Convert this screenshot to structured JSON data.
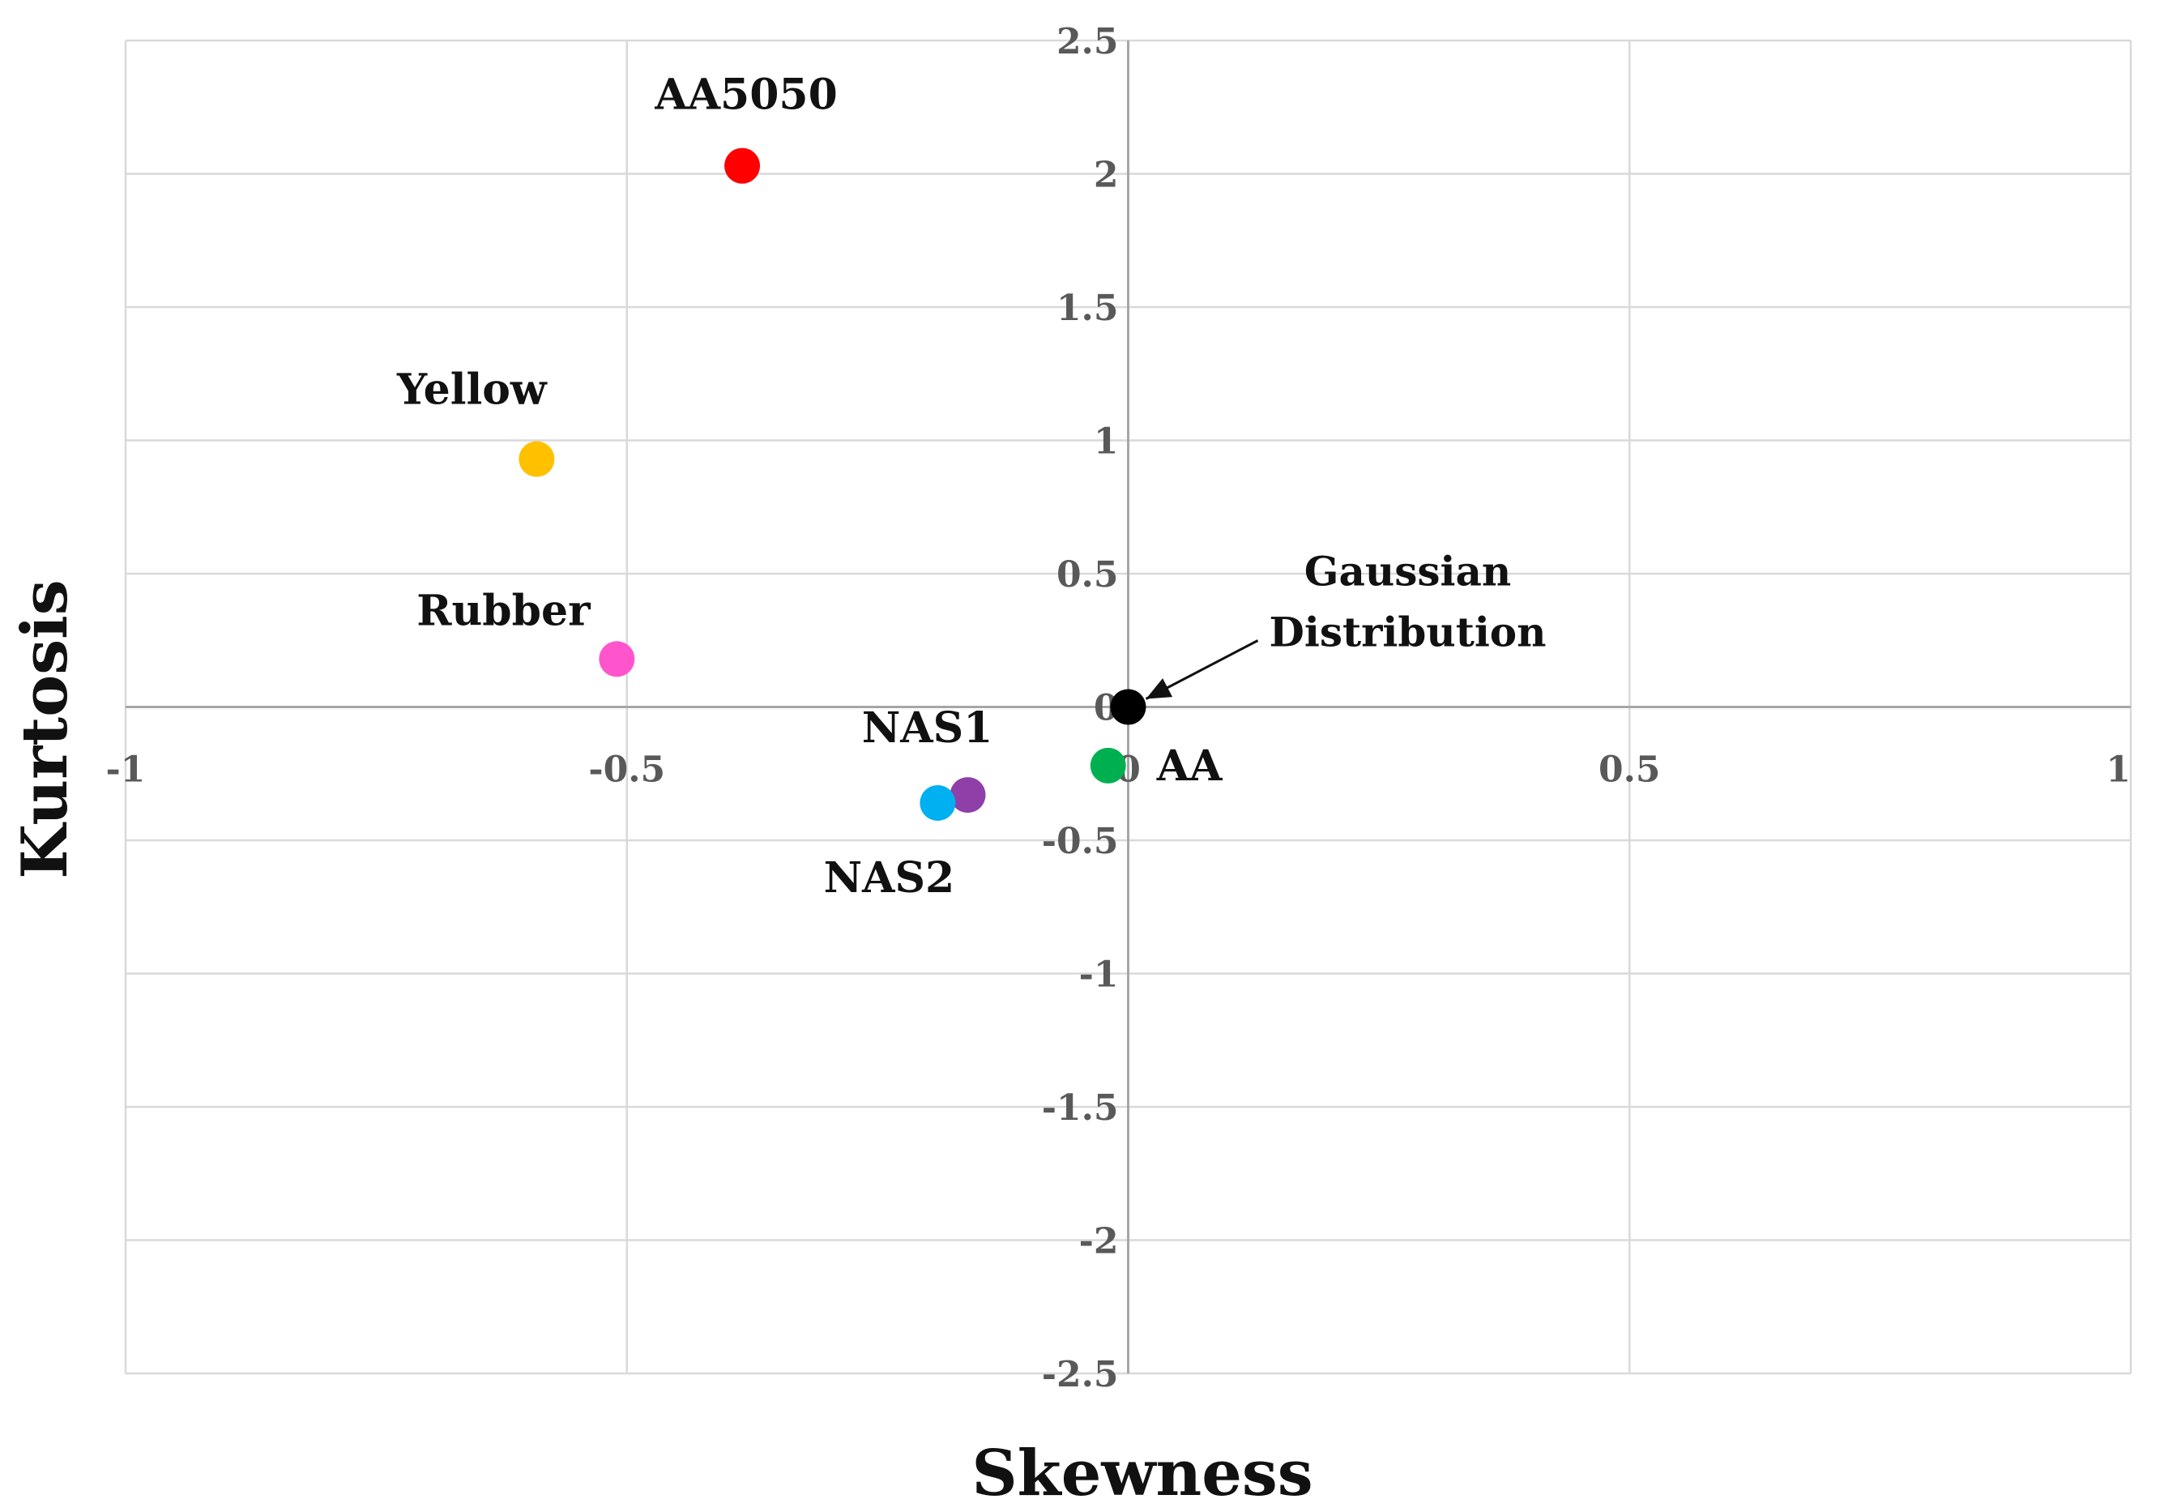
{
  "chart_data": {
    "type": "scatter",
    "title": "",
    "xlabel": "Skewness",
    "ylabel": "Kurtosis",
    "xlim": [
      -1,
      1
    ],
    "ylim": [
      -2.5,
      2.5
    ],
    "x_ticks": [
      -1,
      -0.5,
      0,
      0.5,
      1
    ],
    "x_tick_labels": [
      "-1",
      "-0.5",
      "0",
      "0.5",
      "1"
    ],
    "y_ticks": [
      -2.5,
      -2,
      -1.5,
      -1,
      -0.5,
      0,
      0.5,
      1,
      1.5,
      2,
      2.5
    ],
    "y_tick_labels": [
      "-2.5",
      "-2",
      "-1.5",
      "-1",
      "-0.5",
      "0",
      "0.5",
      "1",
      "1.5",
      "2",
      "2.5"
    ],
    "grid": true,
    "series": [
      {
        "name": "AA5050",
        "x": -0.385,
        "y": 2.03,
        "color": "#ff0000",
        "label": "AA5050",
        "label_pos": "top"
      },
      {
        "name": "Yellow",
        "x": -0.59,
        "y": 0.93,
        "color": "#ffc000",
        "label": "Yellow",
        "label_pos": "top-left"
      },
      {
        "name": "Rubber",
        "x": -0.51,
        "y": 0.18,
        "color": "#ff55cc",
        "label": "Rubber",
        "label_pos": "top-left"
      },
      {
        "name": "NAS1",
        "x": -0.16,
        "y": -0.33,
        "color": "#8e3fa8",
        "label": "NAS1",
        "label_pos": "top"
      },
      {
        "name": "NAS2",
        "x": -0.19,
        "y": -0.36,
        "color": "#00b0f0",
        "label": "NAS2",
        "label_pos": "bottom"
      },
      {
        "name": "AA",
        "x": -0.02,
        "y": -0.22,
        "color": "#00b050",
        "label": "AA",
        "label_pos": "right"
      },
      {
        "name": "Gaussian Distribution",
        "x": 0,
        "y": 0,
        "color": "#000000"
      }
    ],
    "annotations": [
      {
        "text_lines": [
          "Gaussian",
          "Distribution"
        ],
        "points_to": "Gaussian Distribution"
      }
    ]
  }
}
